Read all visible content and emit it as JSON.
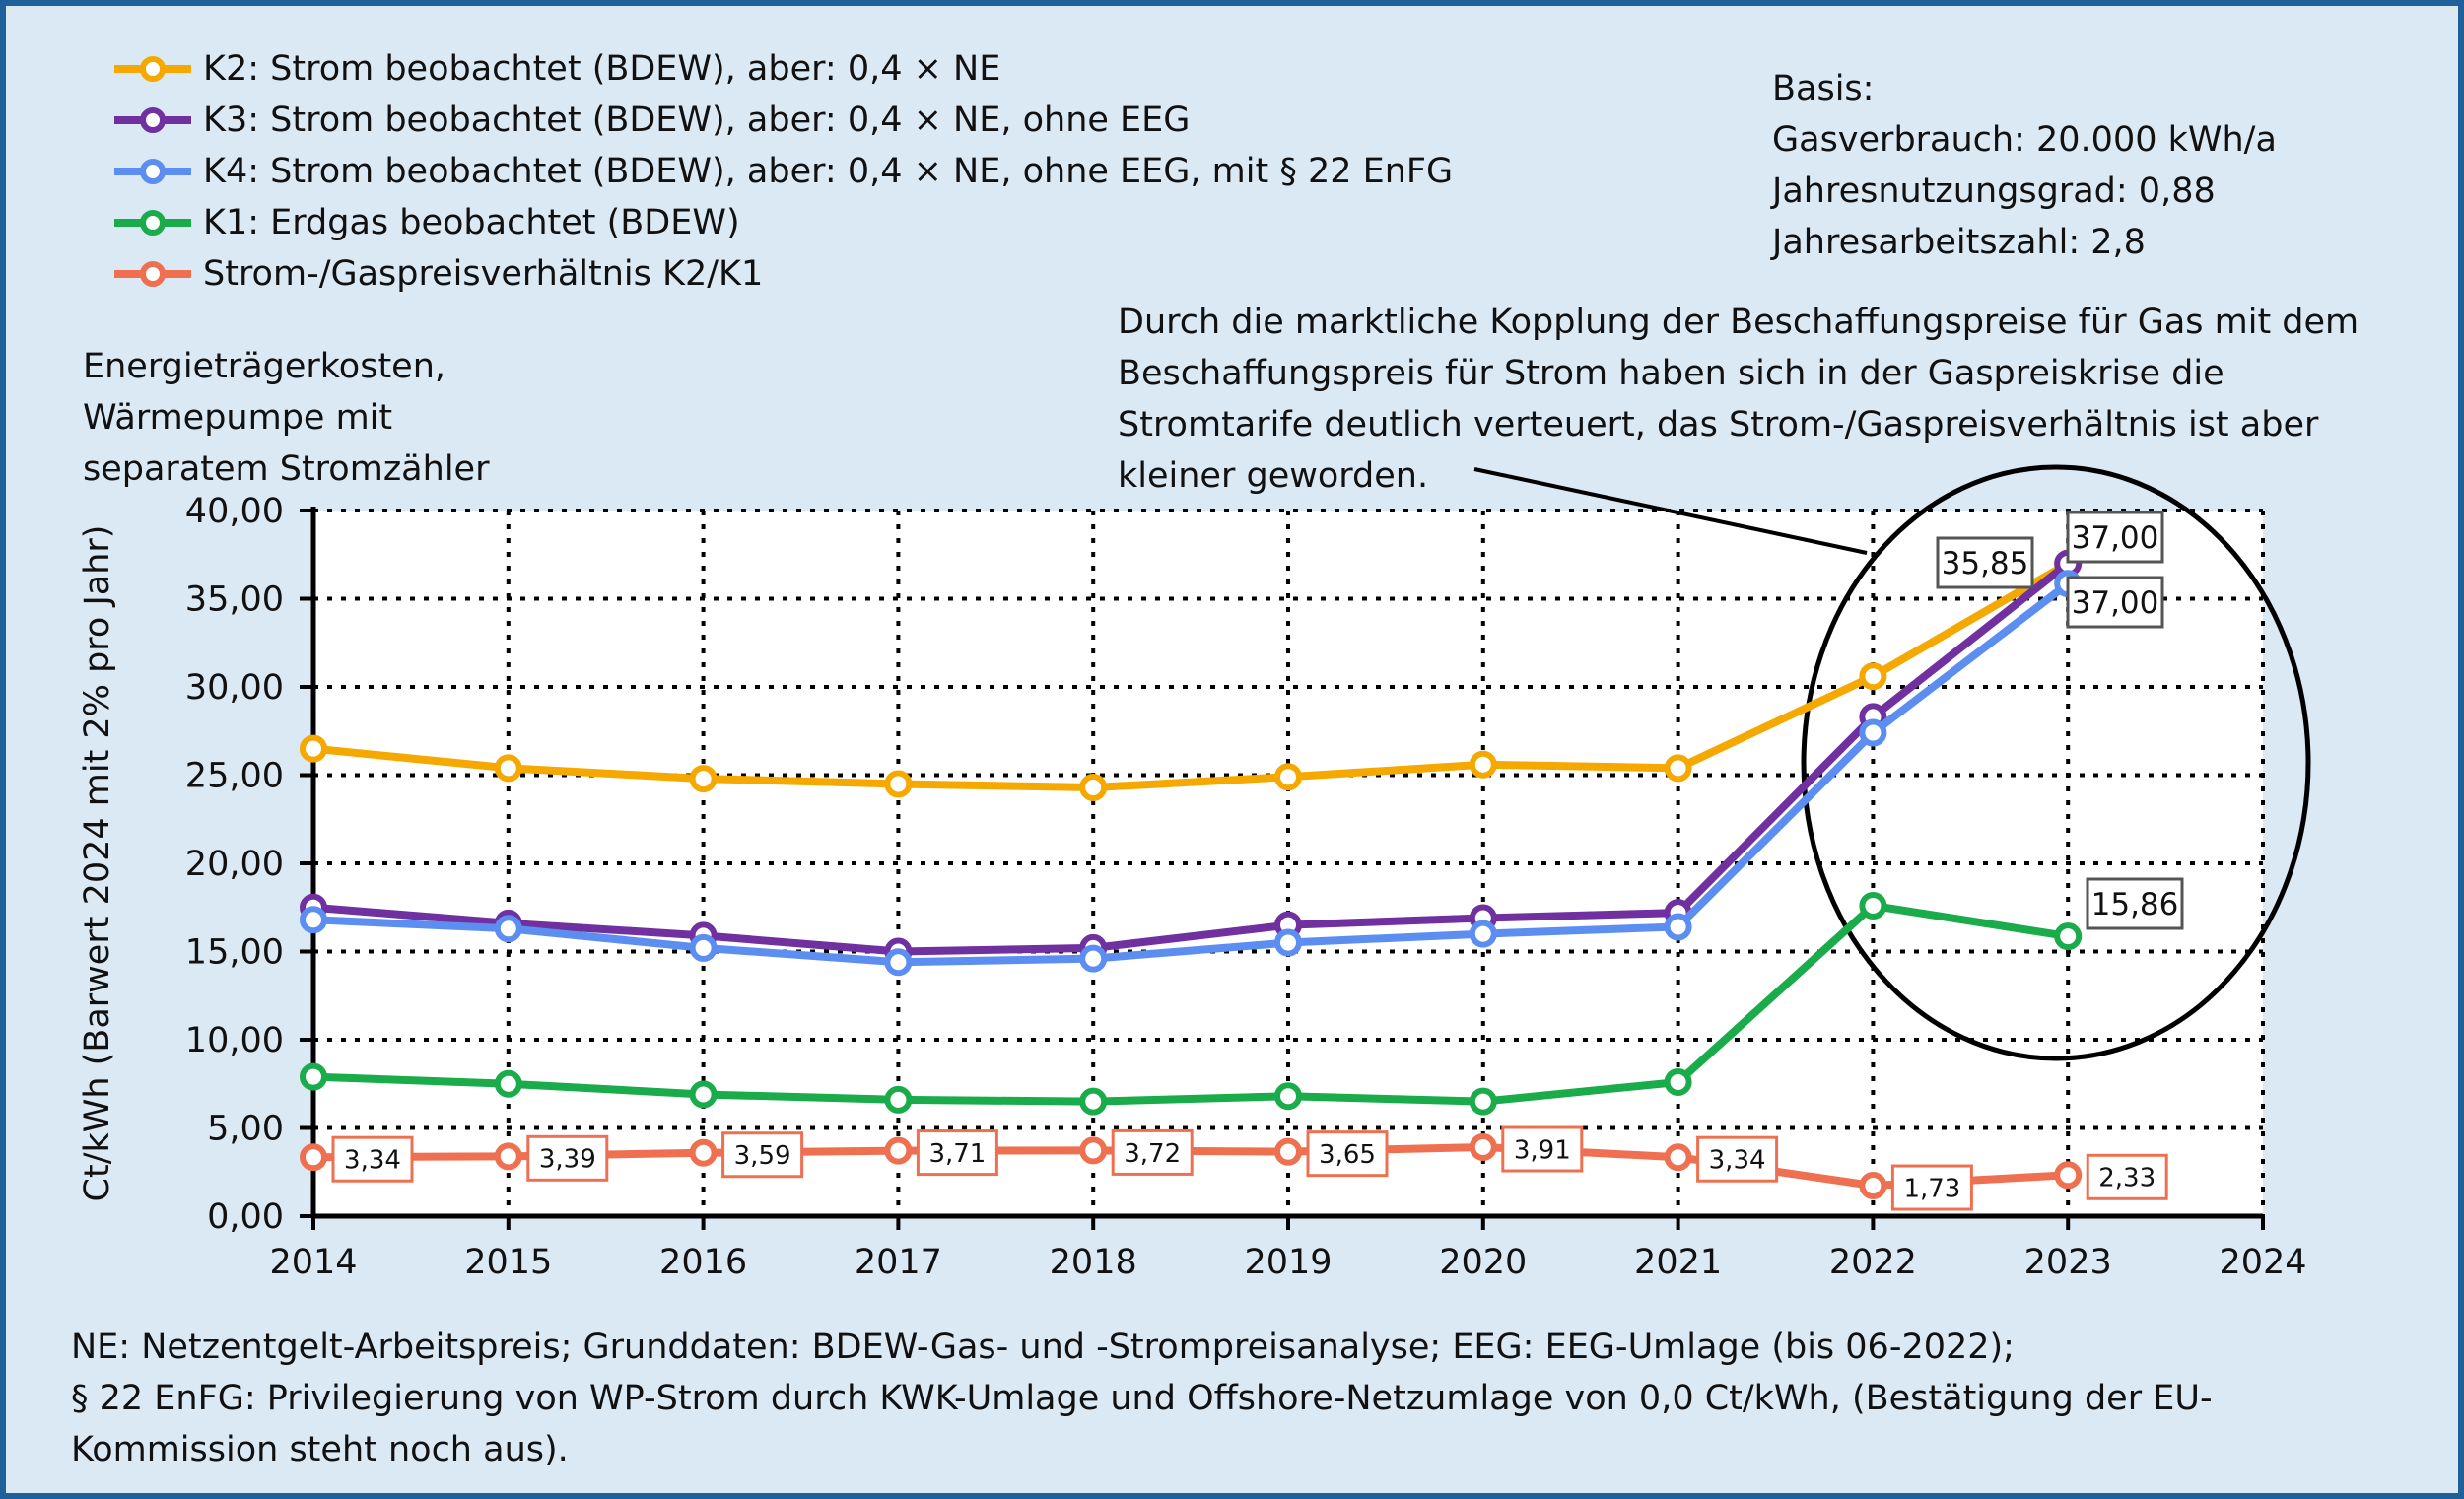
{
  "legend": [
    {
      "label": "K2: Strom beobachtet (BDEW), aber: 0,4 × NE",
      "color": "#f5a800"
    },
    {
      "label": "K3: Strom beobachtet (BDEW), aber: 0,4 × NE, ohne EEG",
      "color": "#7030a0"
    },
    {
      "label": "K4: Strom beobachtet (BDEW), aber: 0,4 × NE, ohne EEG, mit § 22 EnFG",
      "color": "#5b8ef0"
    },
    {
      "label": "K1: Erdgas beobachtet (BDEW)",
      "color": "#1aab4b"
    },
    {
      "label": "Strom-/Gaspreisverhältnis K2/K1",
      "color": "#ee7050"
    }
  ],
  "basis": {
    "title": "Basis:",
    "line1": "Gasverbrauch: 20.000 kWh/a",
    "line2": "Jahresnutzungsgrad: 0,88",
    "line3": "Jahresarbeitszahl: 2,8"
  },
  "callout": "Durch die marktliche Kopplung der Beschaffungspreise für Gas mit dem Beschaffungspreis für Strom haben sich in der Gaspreiskrise die Stromtarife deutlich verteuert, das Strom-/Gaspreisverhältnis ist aber kleiner geworden.",
  "ytitle_block": {
    "line1": "Energieträgerkosten,",
    "line2": "Wärmepumpe mit",
    "line3": "separatem Stromzähler"
  },
  "footnotes": {
    "line1": "NE: Netzentgelt-Arbeitspreis; Grunddaten: BDEW-Gas- und -Strompreisanalyse; EEG: EEG-Umlage (bis 06-2022);",
    "line2": "§ 22 EnFG: Privilegierung von WP-Strom durch KWK-Umlage und Offshore-Netzumlage von 0,0 Ct/kWh, (Bestätigung der EU-",
    "line3": "Kommission steht noch aus)."
  },
  "chart_data": {
    "type": "line",
    "xlabel": "",
    "ylabel": "Ct/kWh (Barwert 2024 mit 2% pro Jahr)",
    "x": [
      2014,
      2015,
      2016,
      2017,
      2018,
      2019,
      2020,
      2021,
      2022,
      2023
    ],
    "xlim": [
      2014,
      2024
    ],
    "ylim": [
      0,
      40
    ],
    "xticks": [
      "2014",
      "2015",
      "2016",
      "2017",
      "2018",
      "2019",
      "2020",
      "2021",
      "2022",
      "2023",
      "2024"
    ],
    "yticks": [
      "0,00",
      "5,00",
      "10,00",
      "15,00",
      "20,00",
      "25,00",
      "30,00",
      "35,00",
      "40,00"
    ],
    "grid": true,
    "series": [
      {
        "name": "K2: Strom beobachtet (BDEW), aber: 0,4 × NE",
        "color": "#f5a800",
        "values": [
          26.5,
          25.4,
          24.8,
          24.5,
          24.3,
          24.9,
          25.6,
          25.4,
          30.6,
          37.0
        ]
      },
      {
        "name": "K3: Strom beobachtet (BDEW), aber: 0,4 × NE, ohne EEG",
        "color": "#7030a0",
        "values": [
          17.5,
          16.6,
          15.9,
          15.0,
          15.2,
          16.5,
          16.9,
          17.2,
          28.3,
          37.0
        ]
      },
      {
        "name": "K4: Strom beobachtet (BDEW), aber: 0,4 × NE, ohne EEG, mit § 22 EnFG",
        "color": "#5b8ef0",
        "values": [
          16.8,
          16.3,
          15.2,
          14.4,
          14.6,
          15.5,
          16.0,
          16.4,
          27.4,
          35.85
        ]
      },
      {
        "name": "K1: Erdgas beobachtet (BDEW)",
        "color": "#1aab4b",
        "values": [
          7.9,
          7.5,
          6.9,
          6.6,
          6.5,
          6.8,
          6.5,
          7.6,
          17.6,
          15.86
        ]
      },
      {
        "name": "Strom-/Gaspreisverhältnis K2/K1",
        "color": "#ee7050",
        "values": [
          3.34,
          3.39,
          3.59,
          3.71,
          3.72,
          3.65,
          3.91,
          3.34,
          1.73,
          2.33
        ]
      }
    ],
    "data_labels": {
      "ratio": [
        "3,34",
        "3,39",
        "3,59",
        "3,71",
        "3,72",
        "3,65",
        "3,91",
        "3,34",
        "1,73",
        "2,33"
      ],
      "k4_2023": "35,85",
      "k3_2023": "37,00",
      "k2_2023": "37,00",
      "k1_2023": "15,86"
    }
  }
}
